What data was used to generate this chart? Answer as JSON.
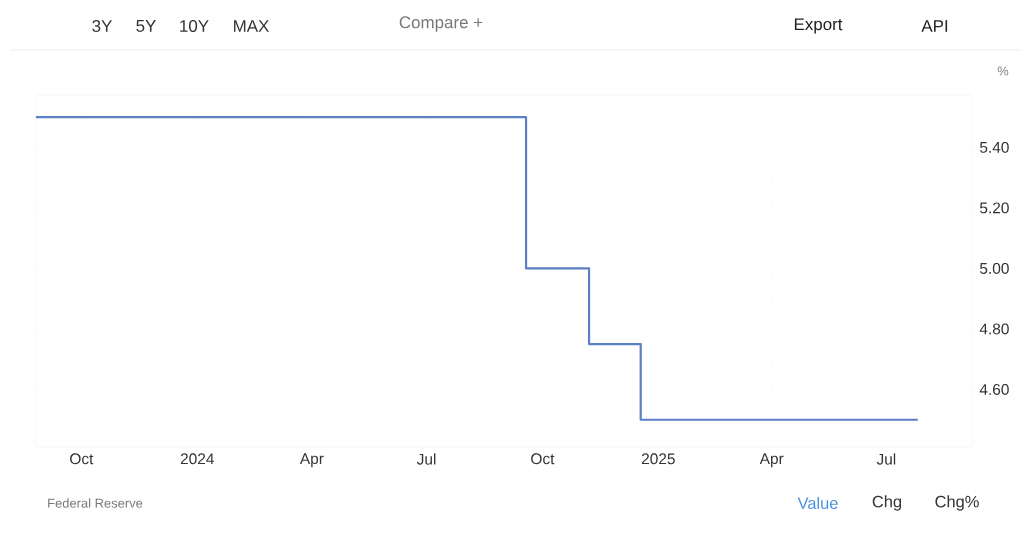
{
  "chart_data": {
    "type": "step",
    "ylabel": "%",
    "x": [
      "2023-08-26",
      "2024-09-18",
      "2024-11-07",
      "2024-12-18",
      "2025-07-26"
    ],
    "series": [
      {
        "color": "#5b80c4",
        "values": [
          5.5,
          5.0,
          4.75,
          4.5,
          4.5
        ]
      }
    ],
    "xlim": [
      "2023-08-26",
      "2025-09-07"
    ],
    "xticks": [
      {
        "value": "2023-10-01",
        "label": "Oct"
      },
      {
        "value": "2024-01-01",
        "label": "2024"
      },
      {
        "value": "2024-04-01",
        "label": "Apr"
      },
      {
        "value": "2024-07-01",
        "label": "Jul"
      },
      {
        "value": "2024-10-01",
        "label": "Oct"
      },
      {
        "value": "2025-01-01",
        "label": "2025"
      },
      {
        "value": "2025-04-01",
        "label": "Apr"
      },
      {
        "value": "2025-07-01",
        "label": "Jul"
      }
    ],
    "ylim": [
      4.41,
      5.573
    ],
    "yticks": [
      {
        "value": 4.6,
        "label": "4.60"
      },
      {
        "value": 4.8,
        "label": "4.80"
      },
      {
        "value": 5.0,
        "label": "5.00"
      },
      {
        "value": 5.2,
        "label": "5.20"
      },
      {
        "value": 5.4,
        "label": "5.40"
      }
    ],
    "grid": true,
    "marker": "none",
    "line_style": "solid",
    "annotations": [
      "3Y",
      "5Y",
      "10Y",
      "MAX",
      "Compare +",
      "Export",
      "API",
      "Federal Reserve",
      "Value",
      "Chg",
      "Chg%"
    ]
  }
}
